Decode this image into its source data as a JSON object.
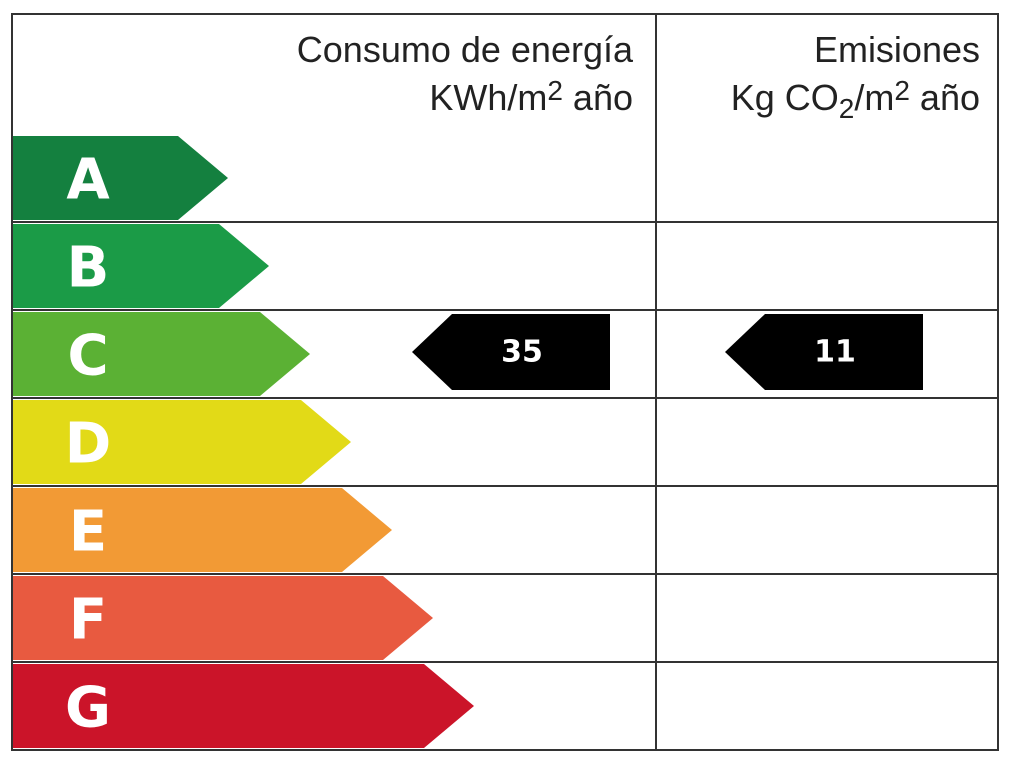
{
  "header": {
    "consumption_title": "Consumo de energía",
    "consumption_units": [
      "KWh/m",
      "2",
      " año"
    ],
    "emissions_title": "Emisiones",
    "emissions_units": [
      "Kg CO",
      "2",
      "/m",
      "2",
      " año"
    ]
  },
  "grades": [
    {
      "letter": "A",
      "color": "#14803f"
    },
    {
      "letter": "B",
      "color": "#1b9b47"
    },
    {
      "letter": "C",
      "color": "#5bb134"
    },
    {
      "letter": "D",
      "color": "#e2da17"
    },
    {
      "letter": "E",
      "color": "#f29a35"
    },
    {
      "letter": "F",
      "color": "#e85a40"
    },
    {
      "letter": "G",
      "color": "#cb1429"
    }
  ],
  "rating": {
    "grade": "C",
    "consumption": 35,
    "emissions": 11,
    "color": "#000000"
  }
}
